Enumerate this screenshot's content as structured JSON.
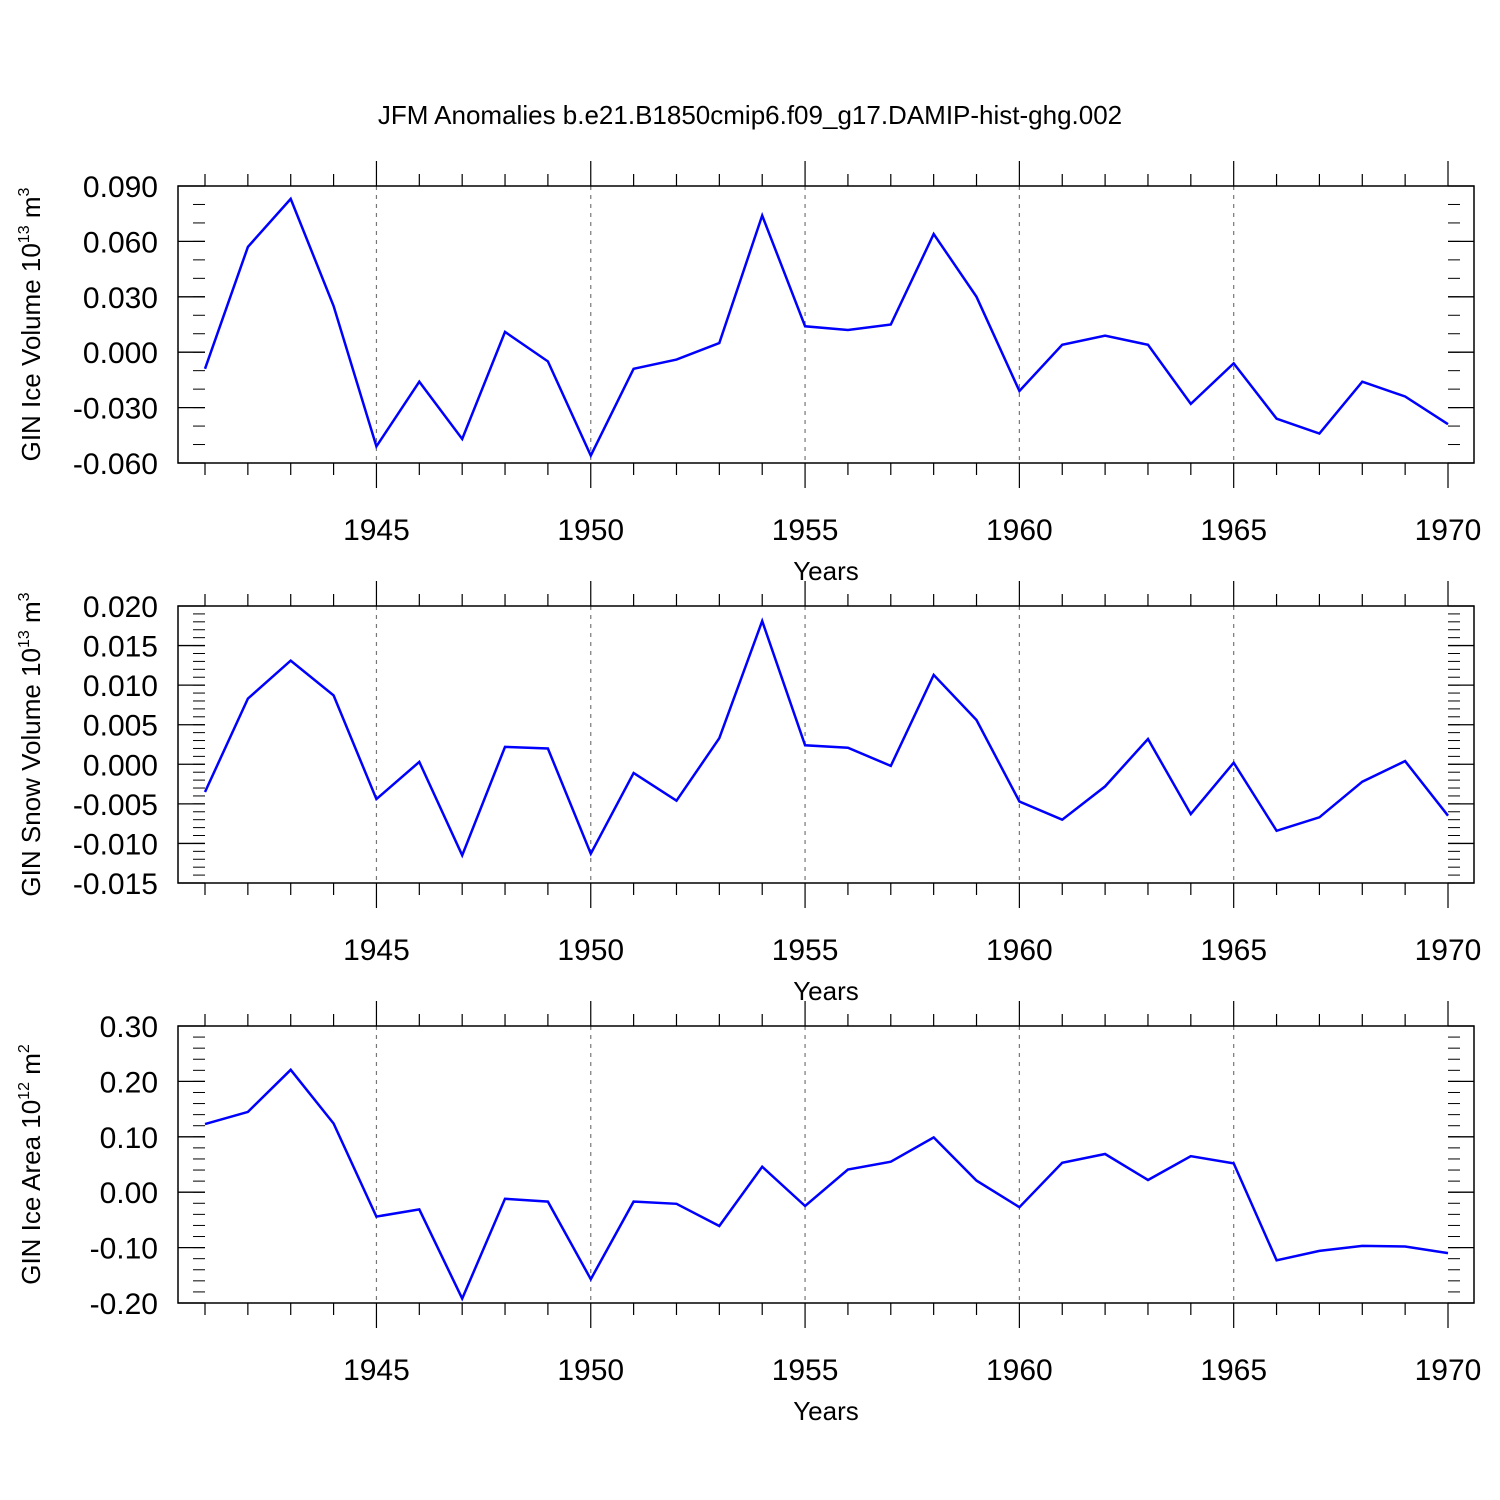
{
  "title": "JFM Anomalies b.e21.B1850cmip6.f09_g17.DAMIP-hist-ghg.002",
  "chart_data": [
    {
      "type": "line",
      "name": "ice-volume",
      "ylabel_main": "GIN Ice Volume 10",
      "ylabel_exp": "13",
      "ylabel_unit": "m",
      "ylabel_unit_exp": "3",
      "xlabel": "Years",
      "xlim": [
        1941,
        1970
      ],
      "ylim": [
        -0.06,
        0.09
      ],
      "yticks": [
        -0.06,
        -0.03,
        0.0,
        0.03,
        0.06,
        0.09
      ],
      "ytick_labels": [
        "-0.060",
        "-0.030",
        "0.000",
        "0.030",
        "0.060",
        "0.090"
      ],
      "yminor_step": 0.01,
      "xticks": [
        1945,
        1950,
        1955,
        1960,
        1965,
        1970
      ],
      "xtick_labels": [
        "1945",
        "1950",
        "1955",
        "1960",
        "1965",
        "1970"
      ],
      "line_color": "#0000ff",
      "series": [
        {
          "name": "GIN Ice Volume",
          "x": [
            1941,
            1942,
            1943,
            1944,
            1945,
            1946,
            1947,
            1948,
            1949,
            1950,
            1951,
            1952,
            1953,
            1954,
            1955,
            1956,
            1957,
            1958,
            1959,
            1960,
            1961,
            1962,
            1963,
            1964,
            1965,
            1966,
            1967,
            1968,
            1969,
            1970
          ],
          "values": [
            -0.009,
            0.057,
            0.083,
            0.025,
            -0.051,
            -0.016,
            -0.047,
            0.011,
            -0.005,
            -0.056,
            -0.009,
            -0.004,
            0.005,
            0.074,
            0.014,
            0.012,
            0.015,
            0.064,
            0.03,
            -0.021,
            0.004,
            0.009,
            0.004,
            -0.028,
            -0.006,
            -0.036,
            -0.044,
            -0.016,
            -0.024,
            -0.039
          ]
        }
      ]
    },
    {
      "type": "line",
      "name": "snow-volume",
      "ylabel_main": "GIN Snow Volume 10",
      "ylabel_exp": "13",
      "ylabel_unit": "m",
      "ylabel_unit_exp": "3",
      "xlabel": "Years",
      "xlim": [
        1941,
        1970
      ],
      "ylim": [
        -0.015,
        0.02
      ],
      "yticks": [
        -0.015,
        -0.01,
        -0.005,
        0.0,
        0.005,
        0.01,
        0.015,
        0.02
      ],
      "ytick_labels": [
        "-0.015",
        "-0.010",
        "-0.005",
        "0.000",
        "0.005",
        "0.010",
        "0.015",
        "0.020"
      ],
      "yminor_step": 0.001,
      "xticks": [
        1945,
        1950,
        1955,
        1960,
        1965,
        1970
      ],
      "xtick_labels": [
        "1945",
        "1950",
        "1955",
        "1960",
        "1965",
        "1970"
      ],
      "line_color": "#0000ff",
      "series": [
        {
          "name": "GIN Snow Volume",
          "x": [
            1941,
            1942,
            1943,
            1944,
            1945,
            1946,
            1947,
            1948,
            1949,
            1950,
            1951,
            1952,
            1953,
            1954,
            1955,
            1956,
            1957,
            1958,
            1959,
            1960,
            1961,
            1962,
            1963,
            1964,
            1965,
            1966,
            1967,
            1968,
            1969,
            1970
          ],
          "values": [
            -0.0035,
            0.0083,
            0.0131,
            0.0087,
            -0.0044,
            0.0003,
            -0.0115,
            0.0022,
            0.002,
            -0.0113,
            -0.0011,
            -0.0046,
            0.0033,
            0.0181,
            0.0024,
            0.0021,
            -0.0002,
            0.0113,
            0.0056,
            -0.0047,
            -0.007,
            -0.0028,
            0.0032,
            -0.0063,
            0.0002,
            -0.0084,
            -0.0067,
            -0.0022,
            0.0004,
            -0.0065
          ]
        }
      ]
    },
    {
      "type": "line",
      "name": "ice-area",
      "ylabel_main": "GIN Ice Area 10",
      "ylabel_exp": "12",
      "ylabel_unit": "m",
      "ylabel_unit_exp": "2",
      "xlabel": "Years",
      "xlim": [
        1941,
        1970
      ],
      "ylim": [
        -0.2,
        0.3
      ],
      "yticks": [
        -0.2,
        -0.1,
        0.0,
        0.1,
        0.2,
        0.3
      ],
      "ytick_labels": [
        "-0.20",
        "-0.10",
        "0.00",
        "0.10",
        "0.20",
        "0.30"
      ],
      "yminor_step": 0.02,
      "xticks": [
        1945,
        1950,
        1955,
        1960,
        1965,
        1970
      ],
      "xtick_labels": [
        "1945",
        "1950",
        "1955",
        "1960",
        "1965",
        "1970"
      ],
      "line_color": "#0000ff",
      "series": [
        {
          "name": "GIN Ice Area",
          "x": [
            1941,
            1942,
            1943,
            1944,
            1945,
            1946,
            1947,
            1948,
            1949,
            1950,
            1951,
            1952,
            1953,
            1954,
            1955,
            1956,
            1957,
            1958,
            1959,
            1960,
            1961,
            1962,
            1963,
            1964,
            1965,
            1966,
            1967,
            1968,
            1969,
            1970
          ],
          "values": [
            0.123,
            0.145,
            0.221,
            0.124,
            -0.044,
            -0.031,
            -0.192,
            -0.012,
            -0.017,
            -0.157,
            -0.017,
            -0.021,
            -0.061,
            0.046,
            -0.025,
            0.041,
            0.055,
            0.099,
            0.021,
            -0.027,
            0.053,
            0.069,
            0.022,
            0.065,
            0.052,
            -0.123,
            -0.106,
            -0.097,
            -0.098,
            -0.11
          ]
        }
      ]
    }
  ]
}
